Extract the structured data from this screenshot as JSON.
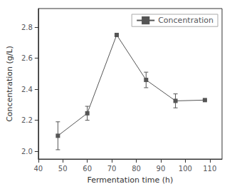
{
  "chart_data": {
    "type": "line",
    "x": [
      48,
      60,
      72,
      84,
      96,
      108
    ],
    "series": [
      {
        "name": "Concentration",
        "color": "#555555",
        "marker": "square",
        "line_style": "solid",
        "values": [
          2.1,
          2.245,
          2.75,
          2.46,
          2.325,
          2.33
        ],
        "yerr": [
          0.09,
          0.045,
          0.0,
          0.05,
          0.045,
          0.0
        ]
      }
    ],
    "xlabel": "Fermentation time (h)",
    "ylabel": "Concentration (g/L)",
    "xlim": [
      40,
      115
    ],
    "ylim": [
      1.95,
      2.92
    ],
    "xticks": [
      40,
      50,
      60,
      70,
      80,
      90,
      100,
      110
    ],
    "yticks": [
      {
        "value": 2.0,
        "label": "2.0"
      },
      2.2,
      2.4,
      2.6,
      2.8
    ],
    "grid": false,
    "legend": "upper right"
  }
}
